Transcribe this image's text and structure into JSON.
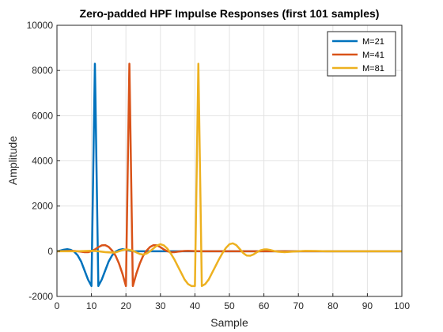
{
  "chart_data": {
    "type": "line",
    "title": "Zero-padded HPF Impulse Responses (first 101 samples)",
    "xlabel": "Sample",
    "ylabel": "Amplitude",
    "xlim": [
      0,
      100
    ],
    "ylim": [
      -2000,
      10000
    ],
    "xticks": [
      0,
      10,
      20,
      30,
      40,
      50,
      60,
      70,
      80,
      90,
      100
    ],
    "yticks": [
      -2000,
      0,
      2000,
      4000,
      6000,
      8000,
      10000
    ],
    "grid": true,
    "legend": "top-right",
    "series": [
      {
        "name": "M=21",
        "color": "#0072BD",
        "points": [
          [
            0,
            0
          ],
          [
            1,
            30
          ],
          [
            2,
            70
          ],
          [
            3,
            90
          ],
          [
            4,
            60
          ],
          [
            5,
            -20
          ],
          [
            6,
            -180
          ],
          [
            7,
            -450
          ],
          [
            8,
            -850
          ],
          [
            9,
            -1250
          ],
          [
            10,
            -1540
          ],
          [
            11,
            8300
          ],
          [
            12,
            -1540
          ],
          [
            13,
            -1250
          ],
          [
            14,
            -850
          ],
          [
            15,
            -450
          ],
          [
            16,
            -180
          ],
          [
            17,
            -20
          ],
          [
            18,
            60
          ],
          [
            19,
            90
          ],
          [
            20,
            70
          ],
          [
            21,
            30
          ],
          [
            22,
            0
          ],
          [
            100,
            0
          ]
        ]
      },
      {
        "name": "M=41",
        "color": "#D95319",
        "points": [
          [
            0,
            0
          ],
          [
            2,
            8
          ],
          [
            4,
            15
          ],
          [
            5,
            10
          ],
          [
            6,
            0
          ],
          [
            7,
            -20
          ],
          [
            8,
            -40
          ],
          [
            9,
            -40
          ],
          [
            10,
            0
          ],
          [
            11,
            80
          ],
          [
            12,
            180
          ],
          [
            13,
            260
          ],
          [
            14,
            270
          ],
          [
            15,
            190
          ],
          [
            16,
            30
          ],
          [
            17,
            -200
          ],
          [
            18,
            -550
          ],
          [
            19,
            -1000
          ],
          [
            20,
            -1540
          ],
          [
            21,
            8300
          ],
          [
            22,
            -1540
          ],
          [
            23,
            -1000
          ],
          [
            24,
            -550
          ],
          [
            25,
            -200
          ],
          [
            26,
            30
          ],
          [
            27,
            190
          ],
          [
            28,
            270
          ],
          [
            29,
            260
          ],
          [
            30,
            180
          ],
          [
            31,
            80
          ],
          [
            32,
            0
          ],
          [
            33,
            -40
          ],
          [
            34,
            -40
          ],
          [
            35,
            -20
          ],
          [
            36,
            0
          ],
          [
            37,
            10
          ],
          [
            38,
            15
          ],
          [
            40,
            8
          ],
          [
            42,
            0
          ],
          [
            100,
            0
          ]
        ]
      },
      {
        "name": "M=81",
        "color": "#EDB120",
        "points": [
          [
            0,
            0
          ],
          [
            6,
            0
          ],
          [
            10,
            20
          ],
          [
            12,
            0
          ],
          [
            14,
            -40
          ],
          [
            16,
            -60
          ],
          [
            17,
            -50
          ],
          [
            18,
            0
          ],
          [
            19,
            50
          ],
          [
            20,
            80
          ],
          [
            21,
            60
          ],
          [
            22,
            20
          ],
          [
            23,
            -50
          ],
          [
            24,
            -120
          ],
          [
            25,
            -150
          ],
          [
            26,
            -100
          ],
          [
            27,
            0
          ],
          [
            28,
            130
          ],
          [
            29,
            250
          ],
          [
            30,
            310
          ],
          [
            31,
            260
          ],
          [
            32,
            120
          ],
          [
            33,
            -100
          ],
          [
            34,
            -350
          ],
          [
            35,
            -650
          ],
          [
            36,
            -950
          ],
          [
            37,
            -1250
          ],
          [
            38,
            -1450
          ],
          [
            39,
            -1540
          ],
          [
            40,
            -1540
          ],
          [
            41,
            8300
          ],
          [
            42,
            -1540
          ],
          [
            43,
            -1450
          ],
          [
            44,
            -1250
          ],
          [
            45,
            -950
          ],
          [
            46,
            -650
          ],
          [
            47,
            -350
          ],
          [
            48,
            -80
          ],
          [
            49,
            150
          ],
          [
            50,
            310
          ],
          [
            51,
            350
          ],
          [
            52,
            270
          ],
          [
            53,
            100
          ],
          [
            54,
            -80
          ],
          [
            55,
            -190
          ],
          [
            56,
            -200
          ],
          [
            57,
            -140
          ],
          [
            58,
            -40
          ],
          [
            59,
            40
          ],
          [
            60,
            80
          ],
          [
            61,
            80
          ],
          [
            62,
            50
          ],
          [
            63,
            10
          ],
          [
            64,
            -20
          ],
          [
            66,
            -40
          ],
          [
            68,
            -20
          ],
          [
            70,
            0
          ],
          [
            72,
            15
          ],
          [
            75,
            10
          ],
          [
            78,
            0
          ],
          [
            80,
            0
          ],
          [
            100,
            0
          ]
        ]
      }
    ]
  }
}
